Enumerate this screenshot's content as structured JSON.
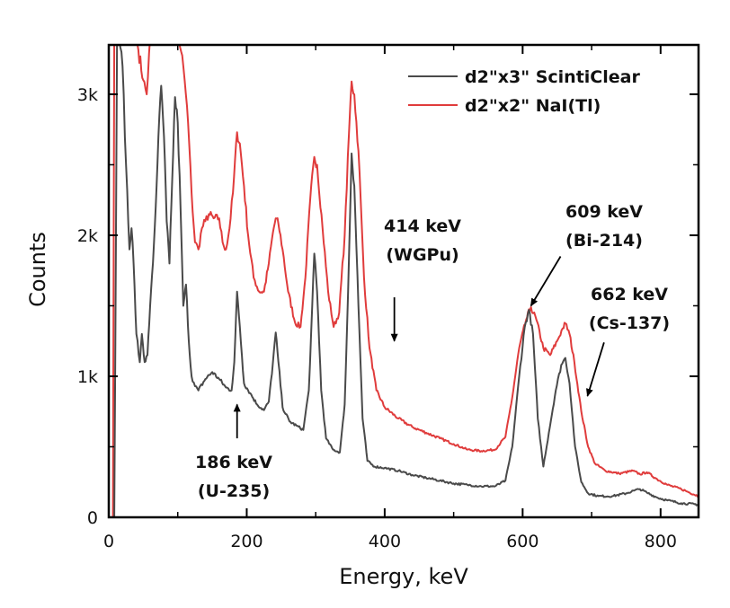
{
  "chart_data": {
    "type": "line",
    "title": "",
    "xlabel": "Energy, keV",
    "ylabel": "Counts",
    "xlim": [
      0,
      855
    ],
    "ylim": [
      0,
      3350
    ],
    "grid": false,
    "x_ticks": [
      0,
      200,
      400,
      600,
      800
    ],
    "x_tick_labels": [
      "0",
      "200",
      "400",
      "600",
      "800"
    ],
    "x_minor_ticks": [
      100,
      300,
      500,
      700
    ],
    "y_ticks": [
      0,
      1000,
      2000,
      3000
    ],
    "y_tick_labels": [
      "0",
      "1k",
      "2k",
      "3k"
    ],
    "y_minor_ticks": [
      500,
      1500,
      2500
    ],
    "legend_position": "top-right",
    "series": [
      {
        "name": "d2\"x3\" ScintiClear",
        "color": "#4a4a4a",
        "points": [
          [
            0,
            0
          ],
          [
            8,
            0
          ],
          [
            12,
            3400
          ],
          [
            15,
            3400
          ],
          [
            20,
            3200
          ],
          [
            25,
            2500
          ],
          [
            30,
            1900
          ],
          [
            33,
            2050
          ],
          [
            36,
            1800
          ],
          [
            40,
            1300
          ],
          [
            45,
            1100
          ],
          [
            48,
            1300
          ],
          [
            52,
            1100
          ],
          [
            56,
            1150
          ],
          [
            60,
            1500
          ],
          [
            64,
            1800
          ],
          [
            68,
            2200
          ],
          [
            72,
            2700
          ],
          [
            76,
            3060
          ],
          [
            80,
            2700
          ],
          [
            84,
            2100
          ],
          [
            88,
            1800
          ],
          [
            92,
            2400
          ],
          [
            96,
            2980
          ],
          [
            100,
            2800
          ],
          [
            104,
            2200
          ],
          [
            108,
            1500
          ],
          [
            112,
            1650
          ],
          [
            116,
            1250
          ],
          [
            120,
            1000
          ],
          [
            125,
            930
          ],
          [
            130,
            900
          ],
          [
            140,
            980
          ],
          [
            150,
            1030
          ],
          [
            160,
            980
          ],
          [
            170,
            920
          ],
          [
            178,
            900
          ],
          [
            182,
            1100
          ],
          [
            186,
            1600
          ],
          [
            190,
            1350
          ],
          [
            196,
            950
          ],
          [
            205,
            880
          ],
          [
            215,
            800
          ],
          [
            225,
            760
          ],
          [
            232,
            820
          ],
          [
            238,
            1100
          ],
          [
            242,
            1310
          ],
          [
            246,
            1100
          ],
          [
            252,
            780
          ],
          [
            262,
            680
          ],
          [
            272,
            650
          ],
          [
            282,
            620
          ],
          [
            290,
            900
          ],
          [
            295,
            1500
          ],
          [
            298,
            1870
          ],
          [
            302,
            1600
          ],
          [
            308,
            900
          ],
          [
            315,
            560
          ],
          [
            325,
            480
          ],
          [
            335,
            460
          ],
          [
            342,
            800
          ],
          [
            347,
            1600
          ],
          [
            352,
            2580
          ],
          [
            356,
            2350
          ],
          [
            362,
            1500
          ],
          [
            368,
            700
          ],
          [
            375,
            400
          ],
          [
            385,
            360
          ],
          [
            400,
            350
          ],
          [
            420,
            330
          ],
          [
            440,
            300
          ],
          [
            460,
            280
          ],
          [
            480,
            260
          ],
          [
            500,
            240
          ],
          [
            520,
            230
          ],
          [
            540,
            220
          ],
          [
            560,
            220
          ],
          [
            575,
            260
          ],
          [
            585,
            500
          ],
          [
            595,
            1000
          ],
          [
            603,
            1350
          ],
          [
            609,
            1470
          ],
          [
            615,
            1300
          ],
          [
            622,
            700
          ],
          [
            630,
            360
          ],
          [
            638,
            600
          ],
          [
            648,
            900
          ],
          [
            656,
            1080
          ],
          [
            662,
            1130
          ],
          [
            668,
            950
          ],
          [
            676,
            500
          ],
          [
            685,
            250
          ],
          [
            695,
            170
          ],
          [
            710,
            150
          ],
          [
            730,
            150
          ],
          [
            750,
            170
          ],
          [
            762,
            190
          ],
          [
            770,
            200
          ],
          [
            780,
            175
          ],
          [
            795,
            140
          ],
          [
            810,
            120
          ],
          [
            830,
            100
          ],
          [
            855,
            90
          ]
        ]
      },
      {
        "name": "d2\"x2\" NaI(Tl)",
        "color": "#e03c3c",
        "points": [
          [
            0,
            0
          ],
          [
            6,
            0
          ],
          [
            8,
            3400
          ],
          [
            30,
            3400
          ],
          [
            40,
            3400
          ],
          [
            50,
            3100
          ],
          [
            55,
            3000
          ],
          [
            60,
            3400
          ],
          [
            70,
            3400
          ],
          [
            100,
            3400
          ],
          [
            105,
            3300
          ],
          [
            108,
            3200
          ],
          [
            110,
            3100
          ],
          [
            115,
            2800
          ],
          [
            120,
            2300
          ],
          [
            125,
            1950
          ],
          [
            130,
            1900
          ],
          [
            135,
            2050
          ],
          [
            140,
            2100
          ],
          [
            145,
            2150
          ],
          [
            152,
            2120
          ],
          [
            160,
            2120
          ],
          [
            165,
            1950
          ],
          [
            170,
            1900
          ],
          [
            175,
            2050
          ],
          [
            180,
            2300
          ],
          [
            186,
            2730
          ],
          [
            190,
            2650
          ],
          [
            196,
            2350
          ],
          [
            202,
            2000
          ],
          [
            210,
            1700
          ],
          [
            218,
            1600
          ],
          [
            225,
            1600
          ],
          [
            232,
            1800
          ],
          [
            238,
            2020
          ],
          [
            242,
            2120
          ],
          [
            246,
            2080
          ],
          [
            252,
            1900
          ],
          [
            260,
            1600
          ],
          [
            270,
            1380
          ],
          [
            278,
            1350
          ],
          [
            285,
            1700
          ],
          [
            292,
            2250
          ],
          [
            298,
            2555
          ],
          [
            302,
            2500
          ],
          [
            310,
            2050
          ],
          [
            318,
            1600
          ],
          [
            326,
            1350
          ],
          [
            334,
            1450
          ],
          [
            342,
            2000
          ],
          [
            348,
            2700
          ],
          [
            352,
            3090
          ],
          [
            356,
            3000
          ],
          [
            362,
            2600
          ],
          [
            370,
            1700
          ],
          [
            378,
            1200
          ],
          [
            388,
            900
          ],
          [
            400,
            780
          ],
          [
            420,
            700
          ],
          [
            440,
            640
          ],
          [
            460,
            600
          ],
          [
            480,
            560
          ],
          [
            500,
            520
          ],
          [
            520,
            480
          ],
          [
            540,
            470
          ],
          [
            560,
            480
          ],
          [
            575,
            570
          ],
          [
            585,
            850
          ],
          [
            595,
            1200
          ],
          [
            605,
            1400
          ],
          [
            612,
            1490
          ],
          [
            620,
            1400
          ],
          [
            630,
            1200
          ],
          [
            640,
            1150
          ],
          [
            650,
            1250
          ],
          [
            658,
            1340
          ],
          [
            662,
            1375
          ],
          [
            668,
            1300
          ],
          [
            675,
            1100
          ],
          [
            685,
            750
          ],
          [
            695,
            500
          ],
          [
            705,
            380
          ],
          [
            720,
            330
          ],
          [
            740,
            310
          ],
          [
            760,
            330
          ],
          [
            770,
            305
          ],
          [
            780,
            320
          ],
          [
            795,
            270
          ],
          [
            810,
            230
          ],
          [
            830,
            200
          ],
          [
            855,
            150
          ]
        ]
      }
    ],
    "annotations": [
      {
        "label_line1": "186 keV",
        "label_line2": "(U-235)",
        "arrow_tip": [
          186,
          800
        ],
        "arrow_tail": [
          186,
          560
        ]
      },
      {
        "label_line1": "414 keV",
        "label_line2": "(WGPu)",
        "arrow_tip": [
          414,
          1250
        ],
        "arrow_tail": [
          414,
          1560
        ]
      },
      {
        "label_line1": "609 keV",
        "label_line2": "(Bi-214)",
        "arrow_tip": [
          612,
          1500
        ],
        "arrow_tail": [
          655,
          1850
        ]
      },
      {
        "label_line1": "662 keV",
        "label_line2": "(Cs-137)",
        "arrow_tip": [
          694,
          860
        ],
        "arrow_tail": [
          718,
          1240
        ]
      }
    ]
  }
}
